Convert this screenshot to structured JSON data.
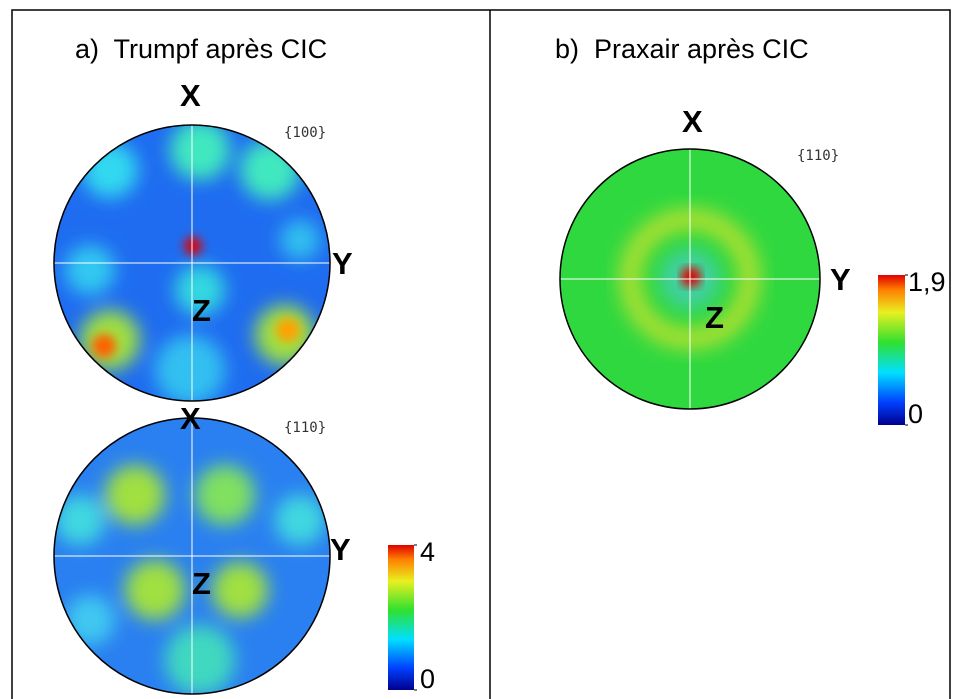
{
  "panels": [
    {
      "title": "a)  Trumpf après CIC",
      "pole_figures": [
        {
          "plane": "{100}",
          "axes": {
            "x": "X",
            "y": "Y",
            "z": "Z"
          }
        },
        {
          "plane": "{110}",
          "axes": {
            "x": "X",
            "y": "Y",
            "z": "Z"
          }
        }
      ],
      "colorbar": {
        "ticks": [
          0,
          4
        ]
      }
    },
    {
      "title": "b)  Praxair après CIC",
      "pole_figures": [
        {
          "plane": "{110}",
          "axes": {
            "x": "X",
            "y": "Y",
            "z": "Z"
          }
        }
      ],
      "colorbar": {
        "ticks": [
          0,
          {
            "value": 1.9,
            "label": "1,9"
          }
        ]
      }
    }
  ]
}
